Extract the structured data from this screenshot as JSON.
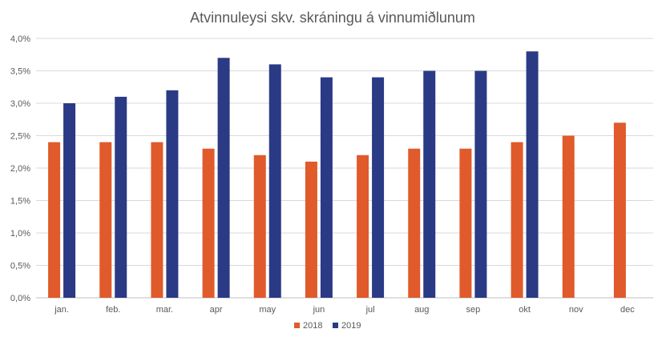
{
  "chart_data": {
    "type": "bar",
    "title": "Atvinnuleysi skv. skráningu á vinnumiðlunum",
    "categories": [
      "jan.",
      "feb.",
      "mar.",
      "apr",
      "may",
      "jun",
      "jul",
      "aug",
      "sep",
      "okt",
      "nov",
      "dec"
    ],
    "series": [
      {
        "name": "2018",
        "color": "#E05A2B",
        "values": [
          2.4,
          2.4,
          2.4,
          2.3,
          2.2,
          2.1,
          2.2,
          2.3,
          2.3,
          2.4,
          2.5,
          2.7
        ]
      },
      {
        "name": "2019",
        "color": "#2A3A85",
        "values": [
          3.0,
          3.1,
          3.2,
          3.7,
          3.6,
          3.4,
          3.4,
          3.5,
          3.5,
          3.8,
          null,
          null
        ]
      }
    ],
    "ylim": [
      0,
      4.0
    ],
    "yticks": [
      0,
      0.5,
      1.0,
      1.5,
      2.0,
      2.5,
      3.0,
      3.5,
      4.0
    ],
    "ytick_labels": [
      "0,0%",
      "0,5%",
      "1,0%",
      "1,5%",
      "2,0%",
      "2,5%",
      "3,0%",
      "3,5%",
      "4,0%"
    ],
    "grid": true,
    "legend_position": "bottom-center"
  }
}
